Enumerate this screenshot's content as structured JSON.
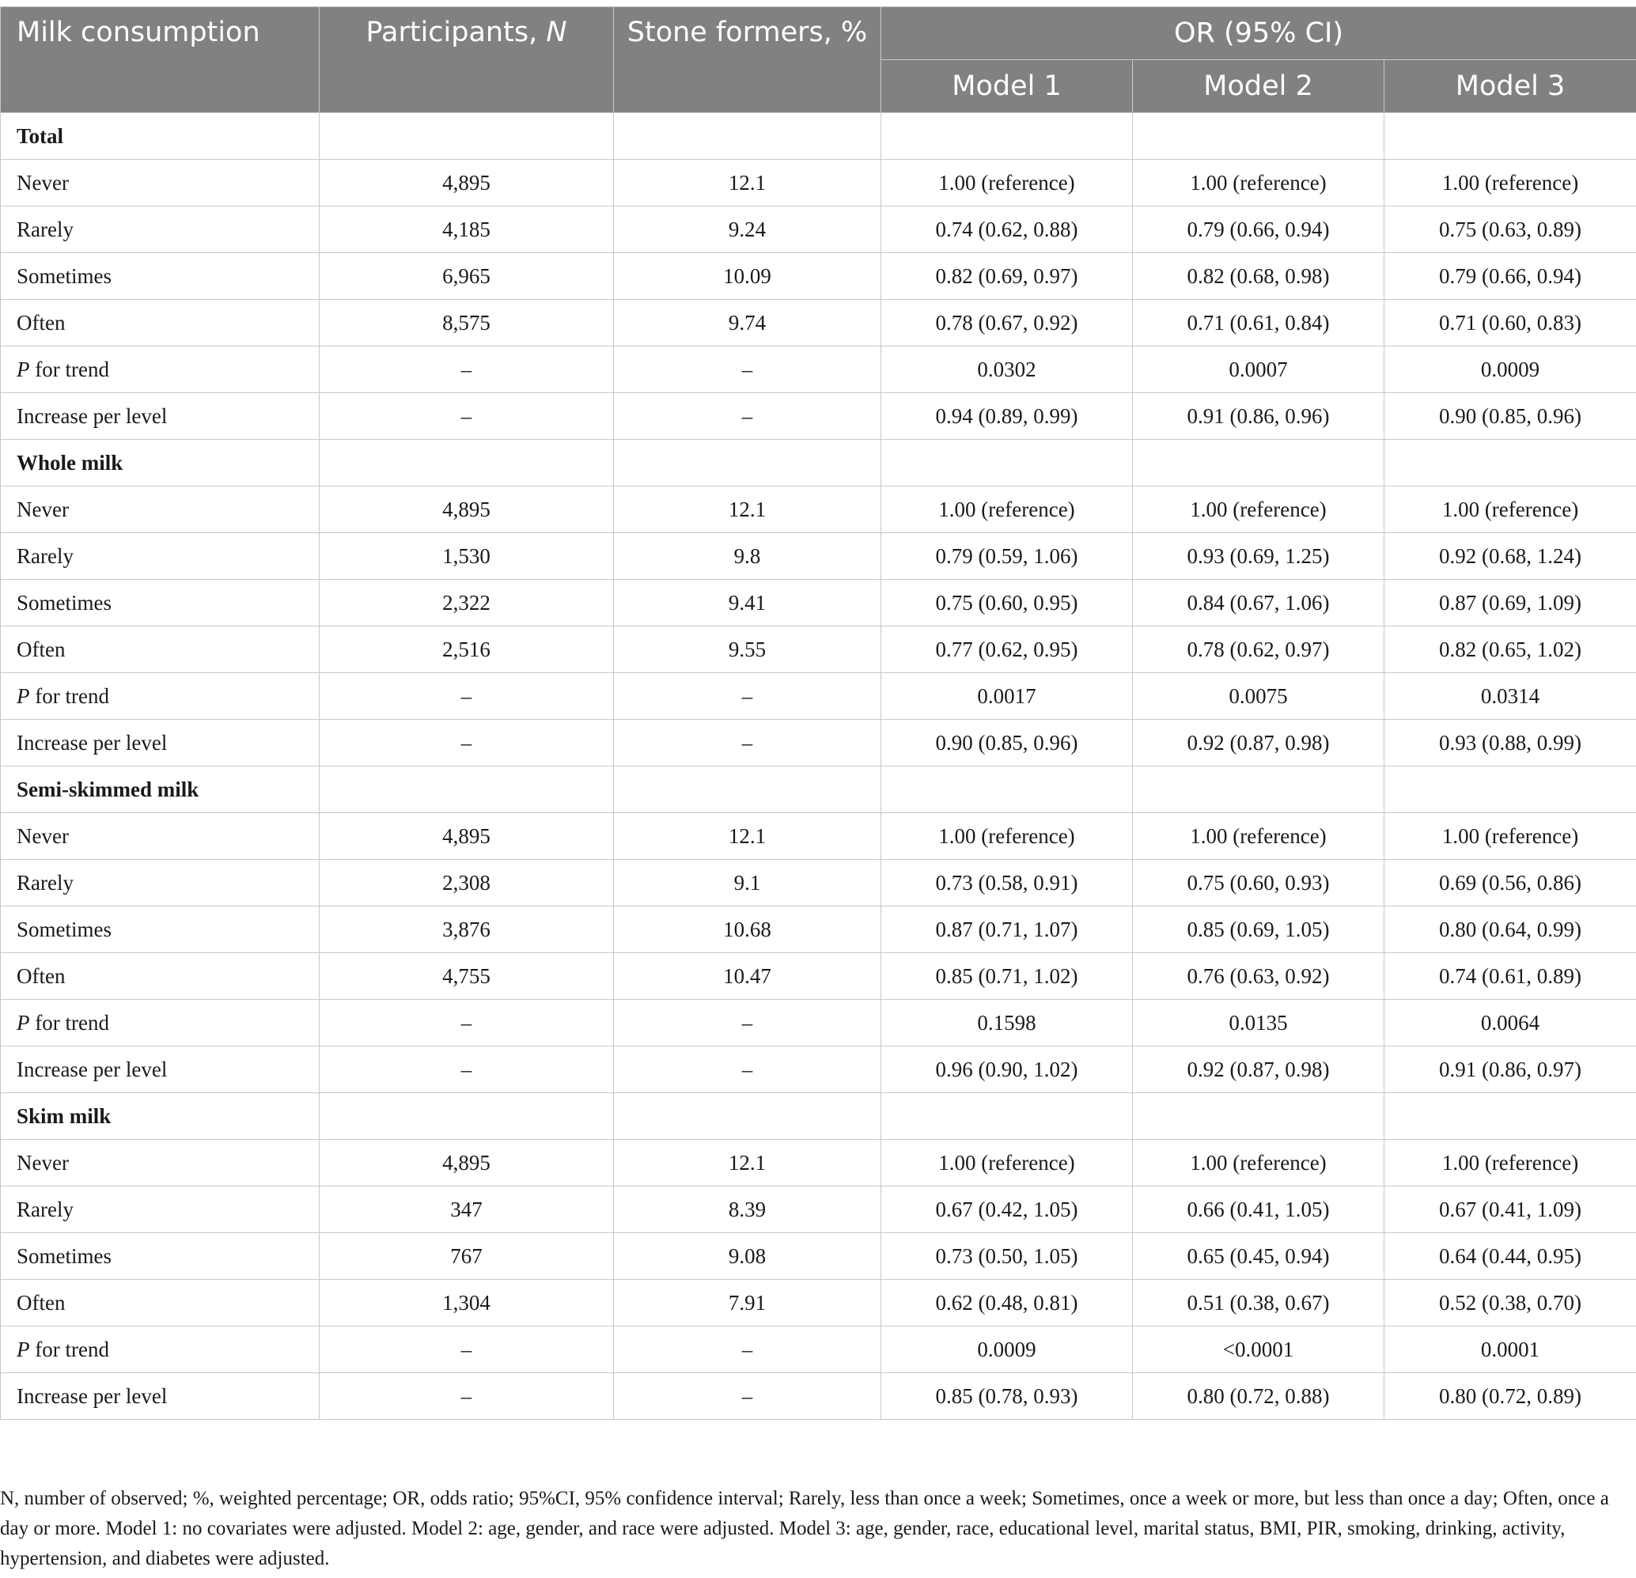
{
  "header": {
    "col_milk": "Milk consumption",
    "col_participants": "Participants, ",
    "col_participants_italic": "N",
    "col_stone": "Stone formers, %",
    "col_or": "OR (95% CI)",
    "model1": "Model 1",
    "model2": "Model 2",
    "model3": "Model 3"
  },
  "sections": [
    {
      "title": "Total",
      "rows": [
        {
          "label": "Never",
          "n": "4,895",
          "pct": "12.1",
          "m1": "1.00 (reference)",
          "m2": "1.00 (reference)",
          "m3": "1.00 (reference)"
        },
        {
          "label": "Rarely",
          "n": "4,185",
          "pct": "9.24",
          "m1": "0.74 (0.62, 0.88)",
          "m2": "0.79 (0.66, 0.94)",
          "m3": "0.75 (0.63, 0.89)"
        },
        {
          "label": "Sometimes",
          "n": "6,965",
          "pct": "10.09",
          "m1": "0.82 (0.69, 0.97)",
          "m2": "0.82 (0.68, 0.98)",
          "m3": "0.79 (0.66, 0.94)"
        },
        {
          "label": "Often",
          "n": "8,575",
          "pct": "9.74",
          "m1": "0.78 (0.67, 0.92)",
          "m2": "0.71 (0.61, 0.84)",
          "m3": "0.71 (0.60, 0.83)"
        },
        {
          "label_italic": "P",
          "label": " for trend",
          "n": "–",
          "pct": "–",
          "m1": "0.0302",
          "m2": "0.0007",
          "m3": "0.0009"
        },
        {
          "label": "Increase per level",
          "n": "–",
          "pct": "–",
          "m1": "0.94 (0.89, 0.99)",
          "m2": "0.91 (0.86, 0.96)",
          "m3": "0.90 (0.85, 0.96)"
        }
      ]
    },
    {
      "title": "Whole milk",
      "rows": [
        {
          "label": "Never",
          "n": "4,895",
          "pct": "12.1",
          "m1": "1.00 (reference)",
          "m2": "1.00 (reference)",
          "m3": "1.00 (reference)"
        },
        {
          "label": "Rarely",
          "n": "1,530",
          "pct": "9.8",
          "m1": "0.79 (0.59, 1.06)",
          "m2": "0.93 (0.69, 1.25)",
          "m3": "0.92 (0.68, 1.24)"
        },
        {
          "label": "Sometimes",
          "n": "2,322",
          "pct": "9.41",
          "m1": "0.75 (0.60, 0.95)",
          "m2": "0.84 (0.67, 1.06)",
          "m3": "0.87 (0.69, 1.09)"
        },
        {
          "label": "Often",
          "n": "2,516",
          "pct": "9.55",
          "m1": "0.77 (0.62, 0.95)",
          "m2": "0.78 (0.62, 0.97)",
          "m3": "0.82 (0.65, 1.02)"
        },
        {
          "label_italic": "P",
          "label": " for trend",
          "n": "–",
          "pct": "–",
          "m1": "0.0017",
          "m2": "0.0075",
          "m3": "0.0314"
        },
        {
          "label": "Increase per level",
          "n": "–",
          "pct": "–",
          "m1": "0.90 (0.85, 0.96)",
          "m2": "0.92 (0.87, 0.98)",
          "m3": "0.93 (0.88, 0.99)"
        }
      ]
    },
    {
      "title": "Semi-skimmed milk",
      "rows": [
        {
          "label": "Never",
          "n": "4,895",
          "pct": "12.1",
          "m1": "1.00 (reference)",
          "m2": "1.00 (reference)",
          "m3": "1.00 (reference)"
        },
        {
          "label": "Rarely",
          "n": "2,308",
          "pct": "9.1",
          "m1": "0.73 (0.58, 0.91)",
          "m2": "0.75 (0.60, 0.93)",
          "m3": "0.69 (0.56, 0.86)"
        },
        {
          "label": "Sometimes",
          "n": "3,876",
          "pct": "10.68",
          "m1": "0.87 (0.71, 1.07)",
          "m2": "0.85 (0.69, 1.05)",
          "m3": "0.80 (0.64, 0.99)"
        },
        {
          "label": "Often",
          "n": "4,755",
          "pct": "10.47",
          "m1": "0.85 (0.71, 1.02)",
          "m2": "0.76 (0.63, 0.92)",
          "m3": "0.74 (0.61, 0.89)"
        },
        {
          "label_italic": "P",
          "label": " for trend",
          "n": "–",
          "pct": "–",
          "m1": "0.1598",
          "m2": "0.0135",
          "m3": "0.0064"
        },
        {
          "label": "Increase per level",
          "n": "–",
          "pct": "–",
          "m1": "0.96 (0.90, 1.02)",
          "m2": "0.92 (0.87, 0.98)",
          "m3": "0.91 (0.86, 0.97)"
        }
      ]
    },
    {
      "title": "Skim milk",
      "rows": [
        {
          "label": "Never",
          "n": "4,895",
          "pct": "12.1",
          "m1": "1.00 (reference)",
          "m2": "1.00 (reference)",
          "m3": "1.00 (reference)"
        },
        {
          "label": "Rarely",
          "n": "347",
          "pct": "8.39",
          "m1": "0.67 (0.42, 1.05)",
          "m2": "0.66 (0.41, 1.05)",
          "m3": "0.67 (0.41, 1.09)"
        },
        {
          "label": "Sometimes",
          "n": "767",
          "pct": "9.08",
          "m1": "0.73 (0.50, 1.05)",
          "m2": "0.65 (0.45, 0.94)",
          "m3": "0.64 (0.44, 0.95)"
        },
        {
          "label": "Often",
          "n": "1,304",
          "pct": "7.91",
          "m1": "0.62 (0.48, 0.81)",
          "m2": "0.51 (0.38, 0.67)",
          "m3": "0.52 (0.38, 0.70)"
        },
        {
          "label_italic": "P",
          "label": " for trend",
          "n": "–",
          "pct": "–",
          "m1": "0.0009",
          "m2": "<0.0001",
          "m3": "0.0001"
        },
        {
          "label": "Increase per level",
          "n": "–",
          "pct": "–",
          "m1": "0.85 (0.78, 0.93)",
          "m2": "0.80 (0.72, 0.88)",
          "m3": "0.80 (0.72, 0.89)"
        }
      ]
    }
  ],
  "footnote": "N, number of observed; %, weighted percentage; OR, odds ratio; 95%CI, 95% confidence interval; Rarely, less than once a week; Sometimes, once a week or more, but less than once a day; Often, once a day or more. Model 1: no covariates were adjusted. Model 2: age, gender, and race were adjusted. Model 3: age, gender, race, educational level, marital status, BMI, PIR, smoking, drinking, activity, hypertension, and diabetes were adjusted.",
  "colors": {
    "header_bg": "#808280",
    "header_text": "#ffffff",
    "grid": "#c8c8c8",
    "body_text": "#1a1a1a"
  }
}
